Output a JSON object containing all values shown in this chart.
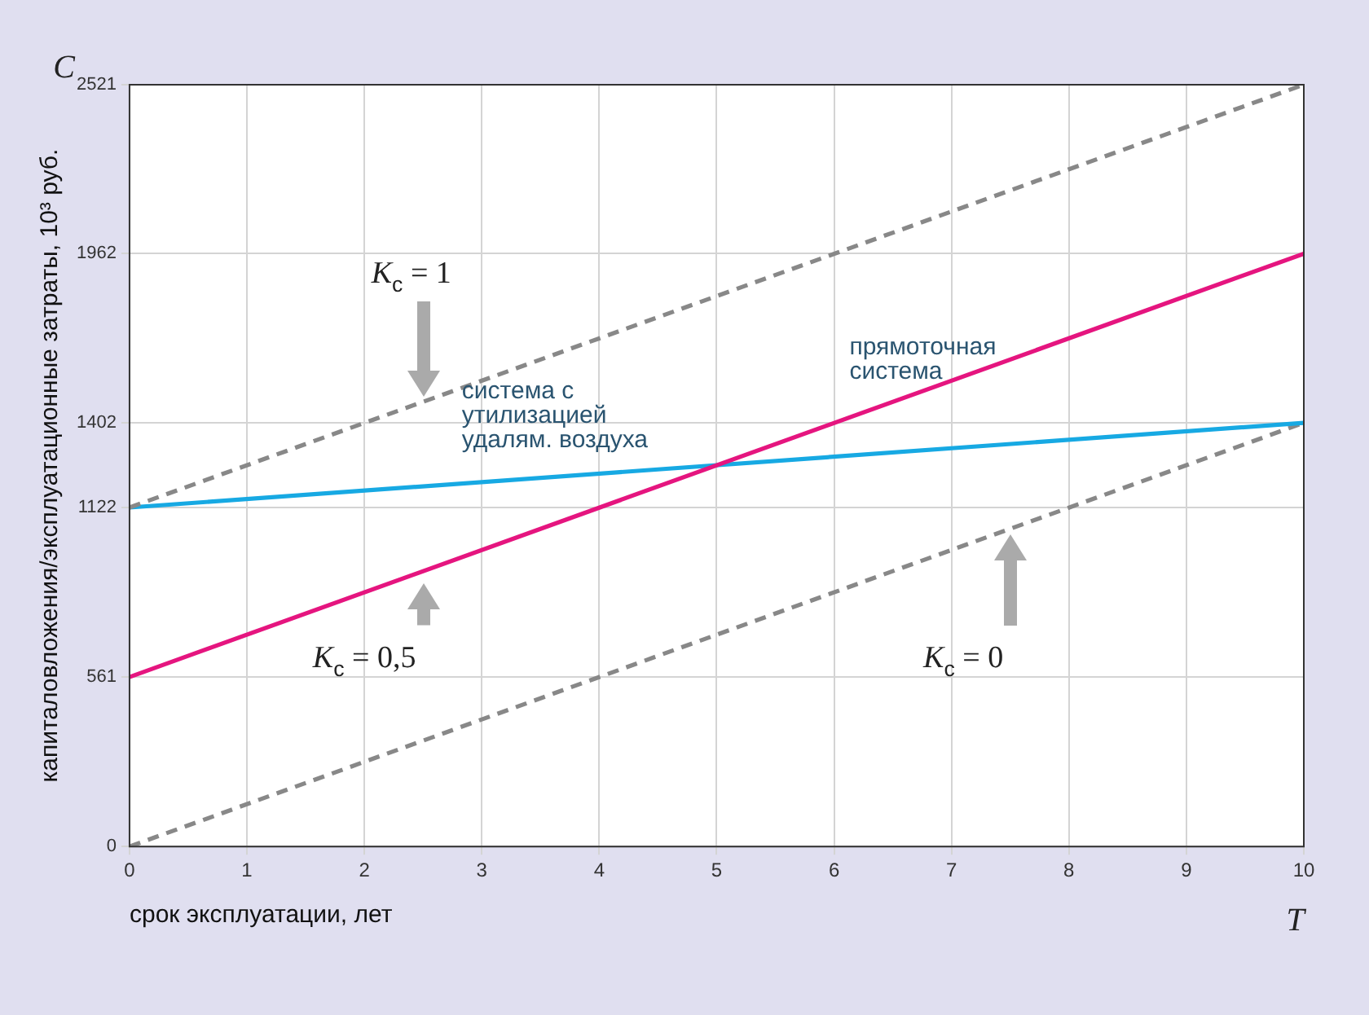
{
  "chart_data": {
    "type": "line",
    "xlabel": "срок эксплуатации, лет",
    "ylabel": "капиталовложения/эксплуатационные затраты, 10³ руб.",
    "x": [
      0,
      10
    ],
    "xlim": [
      0,
      10
    ],
    "xticks": [
      0,
      1,
      2,
      3,
      4,
      5,
      6,
      7,
      8,
      9,
      10
    ],
    "ylim": [
      0,
      2521
    ],
    "yticks": [
      0,
      561,
      1122,
      1402,
      1962,
      2521
    ],
    "grid": true,
    "legend": false,
    "marker": "none",
    "series": [
      {
        "color": "#888888",
        "line_style": "dashed",
        "values": [
          1122,
          2521
        ]
      },
      {
        "name": "прямоточная система",
        "color": "#e5157f",
        "line_style": "solid",
        "values": [
          561,
          1962
        ]
      },
      {
        "name": "система с утилизацией удалям. воздуха",
        "color": "#17a9e3",
        "line_style": "solid",
        "values": [
          1122,
          1402
        ]
      },
      {
        "color": "#888888",
        "line_style": "dashed",
        "values": [
          0,
          1402
        ]
      }
    ],
    "annotations": [
      "C",
      "T",
      "K$_{c}$ = 1",
      "K$_{c}$ = 0,5",
      "K$_{c}$ = 0"
    ]
  }
}
